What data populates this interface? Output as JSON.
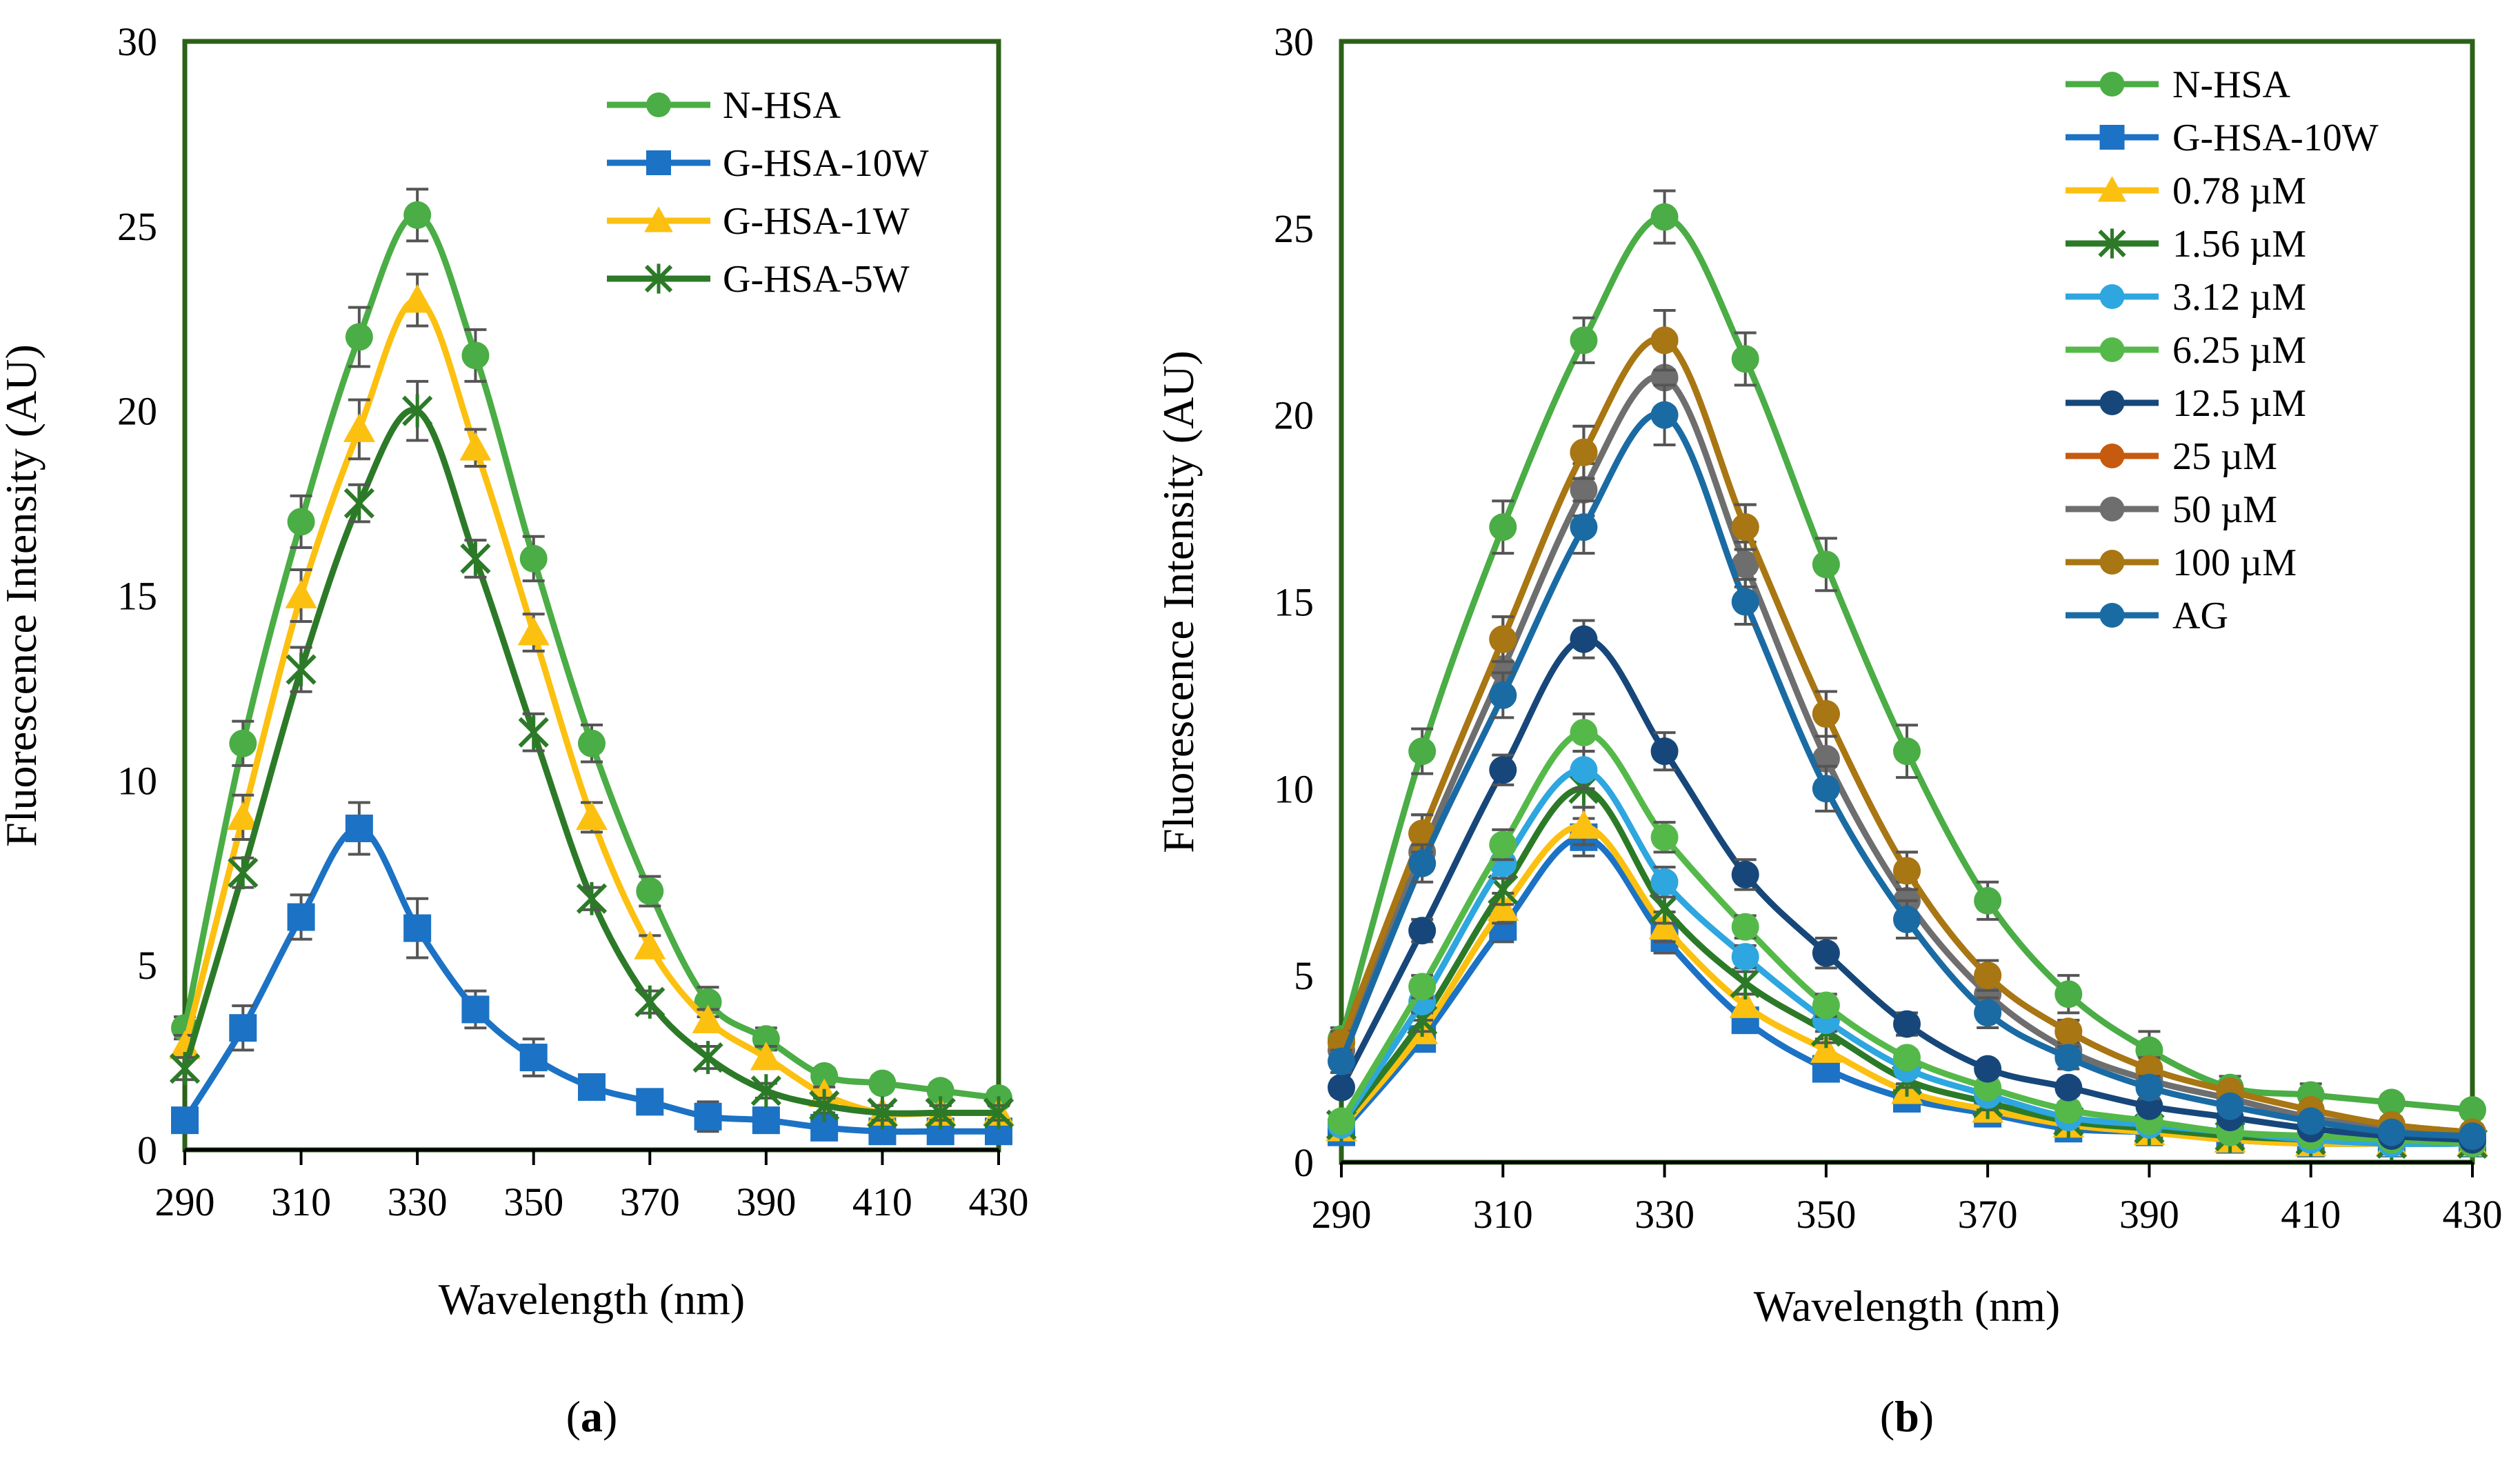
{
  "chart_data": [
    {
      "type": "line",
      "panel": "a",
      "caption": {
        "open": "(",
        "letter": "a",
        "close": ")"
      },
      "xlabel": "Wavelength (nm)",
      "ylabel": "Fluorescence Intensity (AU)",
      "xlim": [
        290,
        430
      ],
      "ylim": [
        0,
        30
      ],
      "xticks": [
        290,
        310,
        330,
        350,
        370,
        390,
        410,
        430
      ],
      "yticks": [
        0,
        5,
        10,
        15,
        20,
        25,
        30
      ],
      "x": [
        290,
        300,
        310,
        320,
        330,
        340,
        350,
        360,
        370,
        380,
        390,
        400,
        410,
        420,
        430
      ],
      "legend_position": "top-right",
      "series": [
        {
          "name": "N-HSA",
          "color": "#4aad45",
          "marker": "circle",
          "values": [
            3.3,
            11,
            17,
            22,
            25.3,
            21.5,
            16,
            11,
            7,
            4,
            3,
            2,
            1.8,
            1.6,
            1.4
          ],
          "errors": [
            0.3,
            0.6,
            0.7,
            0.8,
            0.7,
            0.7,
            0.6,
            0.5,
            0.4,
            0.4,
            0.3,
            0.2,
            0.2,
            0.2,
            0.2
          ]
        },
        {
          "name": "G-HSA-10W",
          "color": "#1c72c4",
          "marker": "square",
          "values": [
            0.8,
            3.3,
            6.3,
            8.7,
            6,
            3.8,
            2.5,
            1.7,
            1.3,
            0.9,
            0.8,
            0.6,
            0.5,
            0.5,
            0.5
          ],
          "errors": [
            0.3,
            0.6,
            0.6,
            0.7,
            0.8,
            0.5,
            0.5,
            0.3,
            0.3,
            0.4,
            0.3,
            0.2,
            0.2,
            0.2,
            0.2
          ]
        },
        {
          "name": "G-HSA-1W",
          "color": "#fcc010",
          "marker": "triangle",
          "values": [
            2.8,
            9,
            15,
            19.5,
            23,
            19,
            14,
            9,
            5.5,
            3.5,
            2.5,
            1.5,
            1,
            1,
            1
          ],
          "errors": [
            0.3,
            0.6,
            0.7,
            0.8,
            0.7,
            0.5,
            0.5,
            0.4,
            0.3,
            0.3,
            0.3,
            0.2,
            0.2,
            0.2,
            0.2
          ]
        },
        {
          "name": "G-HSA-5W",
          "color": "#2c7a28",
          "marker": "star",
          "values": [
            2.2,
            7.5,
            13,
            17.5,
            20,
            16,
            11.3,
            6.8,
            4,
            2.5,
            1.6,
            1.2,
            1,
            1,
            1
          ],
          "errors": [
            0.3,
            0.4,
            0.6,
            0.5,
            0.8,
            0.5,
            0.5,
            0.3,
            0.3,
            0.3,
            0.2,
            0.2,
            0.2,
            0.2,
            0.2
          ]
        }
      ]
    },
    {
      "type": "line",
      "panel": "b",
      "caption": {
        "open": "(",
        "letter": "b",
        "close": ")"
      },
      "xlabel": "Wavelength (nm)",
      "ylabel": "Fluorescence Intensity (AU)",
      "xlim": [
        290,
        430
      ],
      "ylim": [
        0,
        30
      ],
      "xticks": [
        290,
        310,
        330,
        350,
        370,
        390,
        410,
        430
      ],
      "yticks": [
        0,
        5,
        10,
        15,
        20,
        25,
        30
      ],
      "x": [
        290,
        300,
        310,
        320,
        330,
        340,
        350,
        360,
        370,
        380,
        390,
        400,
        410,
        420,
        430
      ],
      "legend_position": "top-right",
      "series": [
        {
          "name": "N-HSA",
          "color": "#4aad45",
          "marker": "circle",
          "values": [
            3.3,
            11,
            17,
            22,
            25.3,
            21.5,
            16,
            11,
            7,
            4.5,
            3,
            2,
            1.8,
            1.6,
            1.4
          ],
          "errors": [
            0.3,
            0.6,
            0.7,
            0.6,
            0.7,
            0.7,
            0.7,
            0.7,
            0.5,
            0.5,
            0.5,
            0.3,
            0.3,
            0.2,
            0.2
          ]
        },
        {
          "name": "G-HSA-10W",
          "color": "#1c72c4",
          "marker": "square",
          "values": [
            0.8,
            3.3,
            6.3,
            8.7,
            6,
            3.8,
            2.5,
            1.7,
            1.3,
            0.9,
            0.8,
            0.6,
            0.5,
            0.5,
            0.5
          ],
          "errors": [
            0.2,
            0.3,
            0.4,
            0.5,
            0.4,
            0.3,
            0.3,
            0.2,
            0.2,
            0.2,
            0.2,
            0.2,
            0.2,
            0.2,
            0.2
          ]
        },
        {
          "name": "0.78 µM",
          "color": "#fcc010",
          "marker": "triangle",
          "values": [
            0.9,
            3.5,
            6.8,
            9,
            6.3,
            4.2,
            3,
            1.9,
            1.4,
            1,
            0.8,
            0.6,
            0.5,
            0.5,
            0.5
          ],
          "errors": [
            0.2,
            0.3,
            0.4,
            0.5,
            0.4,
            0.3,
            0.3,
            0.2,
            0.2,
            0.2,
            0.2,
            0.2,
            0.2,
            0.2,
            0.2
          ]
        },
        {
          "name": "1.56 µM",
          "color": "#2c7a28",
          "marker": "star",
          "values": [
            1,
            3.8,
            7.3,
            10,
            6.8,
            4.8,
            3.5,
            2.2,
            1.6,
            1.1,
            0.9,
            0.7,
            0.6,
            0.5,
            0.5
          ],
          "errors": [
            0.2,
            0.3,
            0.4,
            0.5,
            0.4,
            0.3,
            0.3,
            0.2,
            0.2,
            0.2,
            0.2,
            0.2,
            0.2,
            0.2,
            0.2
          ]
        },
        {
          "name": "3.12 µM",
          "color": "#2ea6df",
          "marker": "circle",
          "values": [
            1,
            4.3,
            8,
            10.5,
            7.5,
            5.5,
            3.8,
            2.5,
            1.8,
            1.2,
            1,
            0.8,
            0.6,
            0.5,
            0.5
          ],
          "errors": [
            0.2,
            0.3,
            0.4,
            0.5,
            0.4,
            0.3,
            0.3,
            0.2,
            0.2,
            0.2,
            0.2,
            0.2,
            0.2,
            0.2,
            0.2
          ]
        },
        {
          "name": "6.25 µM",
          "color": "#55b94a",
          "marker": "circle",
          "values": [
            1.1,
            4.7,
            8.5,
            11.5,
            8.7,
            6.3,
            4.2,
            2.8,
            2,
            1.4,
            1.1,
            0.8,
            0.7,
            0.6,
            0.5
          ],
          "errors": [
            0.2,
            0.3,
            0.4,
            0.5,
            0.4,
            0.3,
            0.3,
            0.2,
            0.2,
            0.2,
            0.2,
            0.2,
            0.2,
            0.2,
            0.2
          ]
        },
        {
          "name": "12.5 µM",
          "color": "#17477a",
          "marker": "circle",
          "values": [
            2,
            6.2,
            10.5,
            14,
            11,
            7.7,
            5.6,
            3.7,
            2.5,
            2,
            1.5,
            1.2,
            0.9,
            0.7,
            0.6
          ],
          "errors": [
            0.2,
            0.3,
            0.4,
            0.5,
            0.5,
            0.4,
            0.4,
            0.3,
            0.2,
            0.2,
            0.2,
            0.2,
            0.2,
            0.2,
            0.2
          ]
        },
        {
          "name": "25 µM",
          "color": "#c65a0e",
          "marker": "circle",
          "values": [
            3.2,
            8.8,
            14,
            19,
            22,
            17,
            12,
            7.8,
            5,
            3.5,
            2.5,
            1.9,
            1.4,
            1,
            0.8
          ],
          "errors": [
            0.3,
            0.5,
            0.6,
            0.7,
            0.8,
            0.6,
            0.6,
            0.5,
            0.4,
            0.3,
            0.3,
            0.2,
            0.2,
            0.2,
            0.2
          ]
        },
        {
          "name": "50 µM",
          "color": "#6e6e6e",
          "marker": "circle",
          "values": [
            3,
            8.3,
            13.2,
            18,
            21,
            16,
            10.8,
            7,
            4.5,
            3,
            2.2,
            1.7,
            1.2,
            0.9,
            0.7
          ],
          "errors": [
            0.3,
            0.5,
            0.6,
            0.7,
            0.8,
            0.6,
            0.6,
            0.5,
            0.4,
            0.3,
            0.3,
            0.2,
            0.2,
            0.2,
            0.2
          ]
        },
        {
          "name": "100 µM",
          "color": "#a87612",
          "marker": "circle",
          "values": [
            3.2,
            8.8,
            14,
            19,
            22,
            17,
            12,
            7.8,
            5,
            3.5,
            2.5,
            1.9,
            1.4,
            1,
            0.8
          ],
          "errors": [
            0.3,
            0.5,
            0.6,
            0.7,
            0.8,
            0.6,
            0.6,
            0.5,
            0.4,
            0.3,
            0.3,
            0.2,
            0.2,
            0.2,
            0.2
          ]
        },
        {
          "name": "AG",
          "color": "#1a6ba3",
          "marker": "circle",
          "values": [
            2.7,
            8,
            12.5,
            17,
            20,
            15,
            10,
            6.5,
            4,
            2.8,
            2,
            1.5,
            1.1,
            0.8,
            0.7
          ],
          "errors": [
            0.3,
            0.5,
            0.6,
            0.7,
            0.8,
            0.6,
            0.6,
            0.5,
            0.4,
            0.3,
            0.3,
            0.2,
            0.2,
            0.2,
            0.2
          ]
        }
      ]
    }
  ]
}
